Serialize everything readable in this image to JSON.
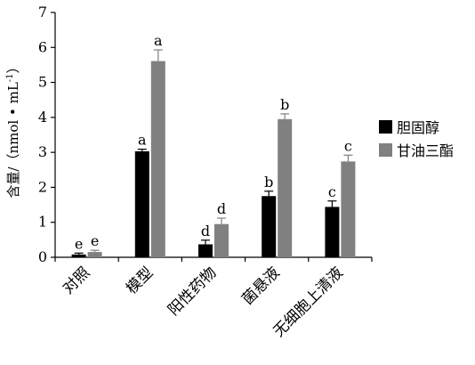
{
  "chart_data": {
    "type": "bar",
    "title": "",
    "xlabel": "",
    "ylabel": "含量/（nmol • mL",
    "ylabel_sup": "-1",
    "ylabel_close": "）",
    "ylim": [
      0,
      7
    ],
    "yticks": [
      0,
      1,
      2,
      3,
      4,
      5,
      6,
      7
    ],
    "grid": false,
    "legend_position": "right",
    "categories": [
      "对照",
      "模型",
      "阳性药物",
      "菌悬液",
      "无细胞上清液"
    ],
    "series": [
      {
        "name": "胆固醇",
        "color": "#000000",
        "values": [
          0.08,
          3.03,
          0.37,
          1.75,
          1.44
        ],
        "errors": [
          0.04,
          0.06,
          0.12,
          0.14,
          0.17
        ],
        "labels": [
          "e",
          "a",
          "d",
          "b",
          "c"
        ]
      },
      {
        "name": "甘油三酯",
        "color": "#808080",
        "values": [
          0.15,
          5.61,
          0.95,
          3.95,
          2.74
        ],
        "errors": [
          0.05,
          0.32,
          0.17,
          0.15,
          0.18
        ],
        "labels": [
          "e",
          "a",
          "d",
          "b",
          "c"
        ]
      }
    ]
  }
}
